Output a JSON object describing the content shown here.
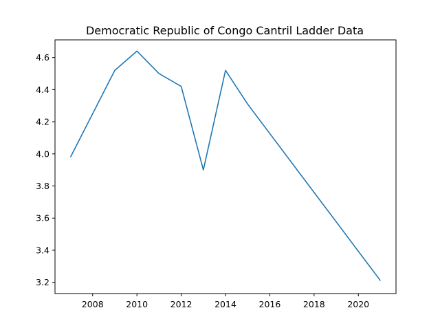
{
  "chart_data": {
    "type": "line",
    "title": "Democratic Republic of Congo Cantril Ladder Data",
    "xlabel": "",
    "ylabel": "",
    "xlim": [
      2006.3,
      2021.7
    ],
    "ylim": [
      3.13,
      4.71
    ],
    "xticks": [
      2008,
      2010,
      2012,
      2014,
      2016,
      2018,
      2020
    ],
    "yticks": [
      3.2,
      3.4,
      3.6,
      3.8,
      4.0,
      4.2,
      4.4,
      4.6
    ],
    "xtick_labels": [
      "2008",
      "2010",
      "2012",
      "2014",
      "2016",
      "2018",
      "2020"
    ],
    "ytick_labels": [
      "3.2",
      "3.4",
      "3.6",
      "3.8",
      "4.0",
      "4.2",
      "4.4",
      "4.6"
    ],
    "grid": false,
    "legend": "none",
    "color": "#1f77b4",
    "series": [
      {
        "x": [
          2007,
          2009,
          2010,
          2011,
          2012,
          2013,
          2014,
          2015,
          2021
        ],
        "values": [
          3.98,
          4.52,
          4.64,
          4.5,
          4.42,
          3.9,
          4.52,
          4.31,
          3.21
        ]
      }
    ]
  }
}
